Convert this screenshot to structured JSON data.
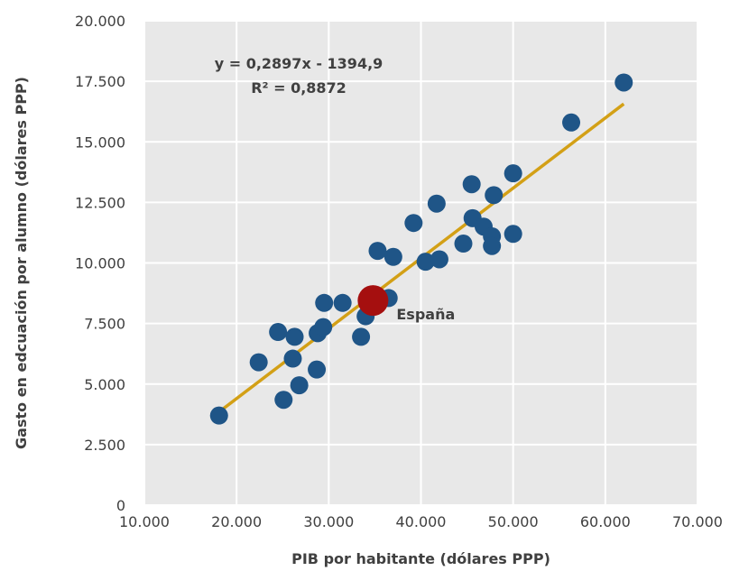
{
  "chart_data": {
    "type": "scatter",
    "title": "",
    "xlabel": "PIB por habitante (dólares PPP)",
    "ylabel": "Gasto en edcuación por alumno (dólares PPP)",
    "xlim": [
      10000,
      70000
    ],
    "ylim": [
      0,
      20000
    ],
    "x_ticks": [
      "10.000",
      "20.000",
      "30.000",
      "40.000",
      "50.000",
      "60.000",
      "70.000"
    ],
    "y_ticks": [
      "0",
      "2.500",
      "5.000",
      "7.500",
      "10.000",
      "12.500",
      "15.000",
      "17.500",
      "20.000"
    ],
    "grid": true,
    "points": [
      {
        "x": 18100,
        "y": 3700
      },
      {
        "x": 22400,
        "y": 5900
      },
      {
        "x": 24500,
        "y": 7150
      },
      {
        "x": 25100,
        "y": 4350
      },
      {
        "x": 26100,
        "y": 6050
      },
      {
        "x": 26300,
        "y": 6950
      },
      {
        "x": 26800,
        "y": 4950
      },
      {
        "x": 28700,
        "y": 5600
      },
      {
        "x": 28800,
        "y": 7100
      },
      {
        "x": 29400,
        "y": 7350
      },
      {
        "x": 29500,
        "y": 8350
      },
      {
        "x": 31500,
        "y": 8350
      },
      {
        "x": 33500,
        "y": 6950
      },
      {
        "x": 34000,
        "y": 7800
      },
      {
        "x": 35300,
        "y": 10500
      },
      {
        "x": 36500,
        "y": 8550
      },
      {
        "x": 37000,
        "y": 10250
      },
      {
        "x": 39200,
        "y": 11650
      },
      {
        "x": 40500,
        "y": 10050
      },
      {
        "x": 41700,
        "y": 12450
      },
      {
        "x": 42000,
        "y": 10150
      },
      {
        "x": 44600,
        "y": 10800
      },
      {
        "x": 45500,
        "y": 13250
      },
      {
        "x": 45600,
        "y": 11850
      },
      {
        "x": 46800,
        "y": 11500
      },
      {
        "x": 47700,
        "y": 11100
      },
      {
        "x": 47700,
        "y": 10700
      },
      {
        "x": 47900,
        "y": 12800
      },
      {
        "x": 50000,
        "y": 13700
      },
      {
        "x": 50000,
        "y": 11200
      },
      {
        "x": 56300,
        "y": 15800
      },
      {
        "x": 62000,
        "y": 17450
      }
    ],
    "highlight": {
      "label": "España",
      "x": 34800,
      "y": 8450
    },
    "trendline": {
      "equation": "y = 0,2897x - 1394,9",
      "r2": "R² = 0,8872",
      "slope": 0.2897,
      "intercept": -1394.9,
      "x_start": 18100,
      "x_end": 62000
    },
    "colors": {
      "plot_background": "#e8e8e8",
      "grid": "#ffffff",
      "points": "#1f5587",
      "highlight": "#a50f0f",
      "trendline": "#d3a016",
      "text": "#404040"
    }
  }
}
